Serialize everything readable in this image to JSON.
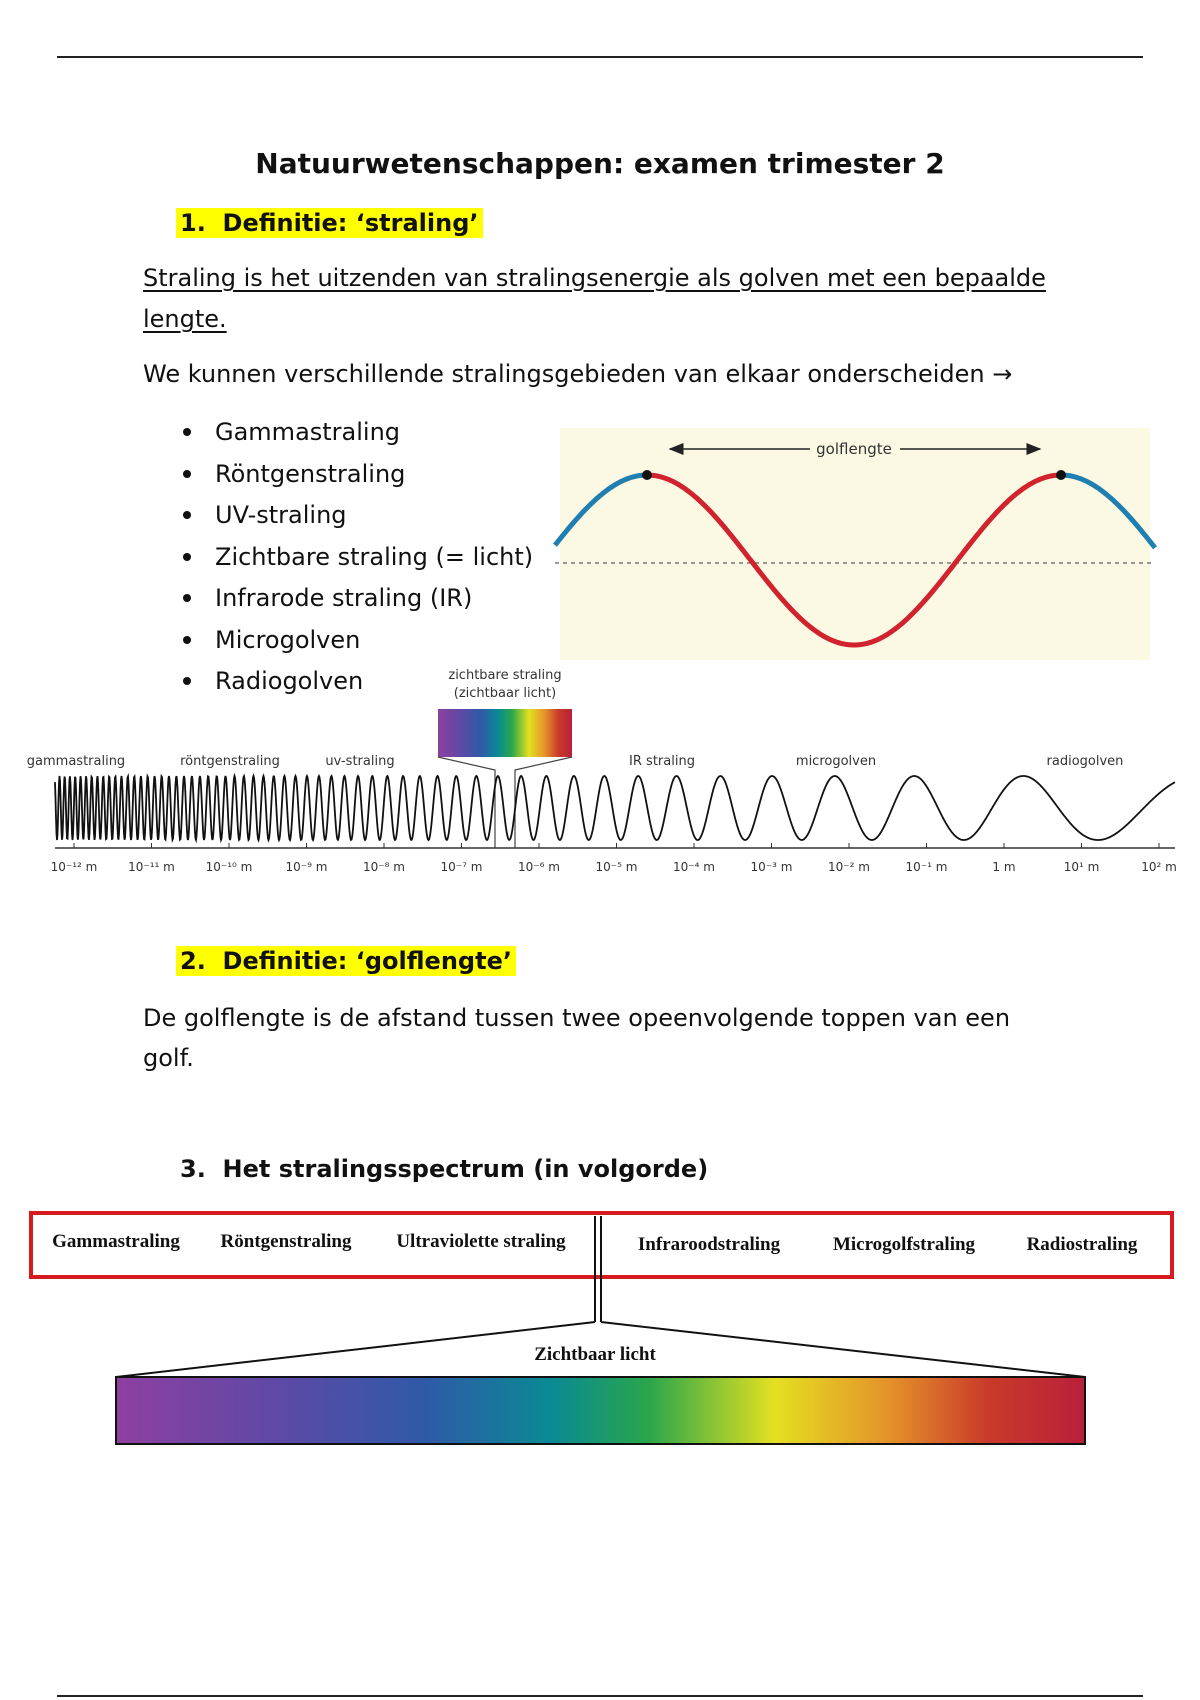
{
  "header": {
    "title": "Natuurwetenschappen: examen trimester 2"
  },
  "section1": {
    "heading": "1.  Definitie: ‘straling’",
    "definition": [
      "Straling is het uitzenden van stralingsenergie als golven met een bepaalde",
      "lengte."
    ],
    "intro": "We kunnen verschillende stralingsgebieden van elkaar onderscheiden →",
    "items": [
      "Gammastraling",
      "Röntgenstraling",
      "UV-straling",
      "Zichtbare straling (= licht)",
      "Infrarode straling (IR)",
      "Microgolven",
      "Radiogolven"
    ]
  },
  "wave_figure": {
    "label": "golflengte"
  },
  "spectrum_figure": {
    "visible_label": [
      "zichtbare straling",
      "(zichtbaar licht)"
    ],
    "regions": [
      "gammastraling",
      "röntgenstraling",
      "uv-straling",
      "IR straling",
      "microgolven",
      "radiogolven"
    ],
    "scale": [
      "10⁻¹² m",
      "10⁻¹¹ m",
      "10⁻¹⁰ m",
      "10⁻⁹ m",
      "10⁻⁸ m",
      "10⁻⁷ m",
      "10⁻⁶ m",
      "10⁻⁵ m",
      "10⁻⁴ m",
      "10⁻³ m",
      "10⁻² m",
      "10⁻¹ m",
      "1 m",
      "10¹ m",
      "10² m"
    ]
  },
  "section2": {
    "heading": "2.  Definitie: ‘golflengte’",
    "text": [
      "De golflengte is de afstand tussen twee opeenvolgende toppen van een",
      "golf."
    ]
  },
  "section3": {
    "heading": "3.  Het stralingsspectrum (in volgorde)",
    "bands": [
      "Gammastraling",
      "Röntgenstraling",
      "Ultraviolette straling",
      "Infraroodstraling",
      "Microgolfstraling",
      "Radiostraling"
    ],
    "visible": "Zichtbaar licht"
  }
}
